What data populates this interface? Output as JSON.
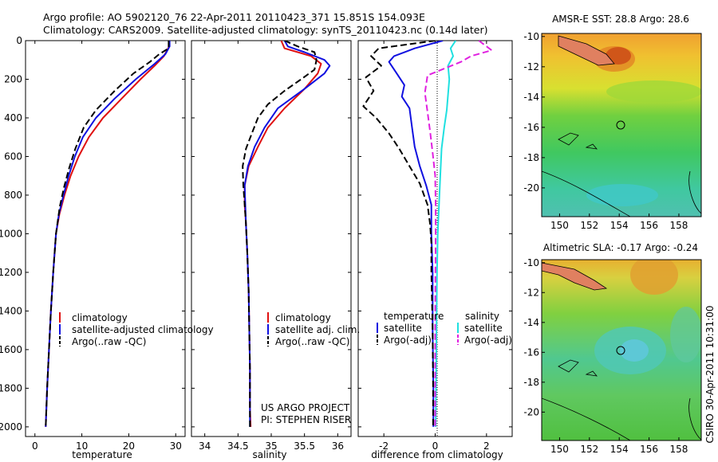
{
  "header": {
    "title_line1": "Argo profile: AO 5902120_76 22-Apr-2011 20110423_371 15.851S 154.093E",
    "title_line2": "Climatology: CARS2009. Satellite-adjusted climatology: synTS_20110423.nc (0.14d later)"
  },
  "side_label": "CSIRO 30-Apr-2011 10:31:00",
  "project": {
    "line1": "US ARGO PROJECT",
    "line2": "PI: STEPHEN RISER"
  },
  "colors": {
    "climatology": "#e01010",
    "satellite": "#1010e0",
    "argo": "#000000",
    "salinity_satellite": "#20e0e0",
    "salinity_argo": "#e020e0"
  },
  "chart_data": [
    {
      "type": "line",
      "id": "temperature",
      "xlabel": "temperature",
      "ylabel": "",
      "xlim": [
        -2,
        32
      ],
      "ylim": [
        2050,
        0
      ],
      "xticks": [
        "0",
        "10",
        "20",
        "30"
      ],
      "yticks": [
        "0",
        "200",
        "400",
        "600",
        "800",
        "1000",
        "1200",
        "1400",
        "1600",
        "1800",
        "2000"
      ],
      "legend": [
        "climatology",
        "satellite-adjusted climatology",
        "Argo(..raw -QC)"
      ],
      "series": [
        {
          "name": "climatology",
          "style": "solid",
          "color": "#e01010",
          "points": [
            [
              28.6,
              0
            ],
            [
              28.6,
              30
            ],
            [
              27.5,
              80
            ],
            [
              25.5,
              130
            ],
            [
              22.5,
              200
            ],
            [
              18.5,
              300
            ],
            [
              14.5,
              400
            ],
            [
              11.5,
              500
            ],
            [
              9.3,
              600
            ],
            [
              7.6,
              700
            ],
            [
              6.3,
              800
            ],
            [
              5.2,
              900
            ],
            [
              4.5,
              1000
            ],
            [
              3.9,
              1200
            ],
            [
              3.4,
              1400
            ],
            [
              3.0,
              1600
            ],
            [
              2.6,
              1800
            ],
            [
              2.3,
              2000
            ]
          ]
        },
        {
          "name": "satellite-adjusted climatology",
          "style": "solid",
          "color": "#1010e0",
          "points": [
            [
              28.7,
              0
            ],
            [
              28.7,
              30
            ],
            [
              27.8,
              70
            ],
            [
              25.5,
              120
            ],
            [
              21.5,
              200
            ],
            [
              17.0,
              300
            ],
            [
              13.0,
              400
            ],
            [
              10.2,
              500
            ],
            [
              8.5,
              600
            ],
            [
              7.2,
              700
            ],
            [
              6.1,
              800
            ],
            [
              5.1,
              900
            ],
            [
              4.5,
              1000
            ],
            [
              3.9,
              1200
            ],
            [
              3.4,
              1400
            ],
            [
              3.0,
              1600
            ],
            [
              2.6,
              1800
            ],
            [
              2.3,
              2000
            ]
          ]
        },
        {
          "name": "Argo(..raw -QC)",
          "style": "dashed",
          "color": "#000000",
          "points": [
            [
              28.5,
              0
            ],
            [
              28.5,
              40
            ],
            [
              26.5,
              70
            ],
            [
              24.5,
              110
            ],
            [
              21.0,
              170
            ],
            [
              17.0,
              260
            ],
            [
              13.0,
              360
            ],
            [
              10.4,
              450
            ],
            [
              8.6,
              560
            ],
            [
              7.3,
              660
            ],
            [
              6.2,
              760
            ],
            [
              5.3,
              860
            ],
            [
              4.5,
              1000
            ],
            [
              3.9,
              1200
            ],
            [
              3.4,
              1400
            ],
            [
              3.0,
              1600
            ],
            [
              2.6,
              1800
            ],
            [
              2.3,
              2000
            ]
          ]
        }
      ]
    },
    {
      "type": "line",
      "id": "salinity",
      "xlabel": "salinity",
      "ylabel": "",
      "xlim": [
        33.8,
        36.2
      ],
      "ylim": [
        2050,
        0
      ],
      "xticks": [
        "34",
        "34.5",
        "35",
        "35.5",
        "36"
      ],
      "legend": [
        "climatology",
        "satellite adj. clim.",
        "Argo(..raw -QC)"
      ],
      "series": [
        {
          "name": "climatology",
          "style": "solid",
          "color": "#e01010",
          "points": [
            [
              35.15,
              0
            ],
            [
              35.2,
              40
            ],
            [
              35.6,
              80
            ],
            [
              35.75,
              120
            ],
            [
              35.7,
              170
            ],
            [
              35.5,
              250
            ],
            [
              35.2,
              350
            ],
            [
              34.95,
              450
            ],
            [
              34.8,
              550
            ],
            [
              34.66,
              650
            ],
            [
              34.6,
              750
            ],
            [
              34.6,
              850
            ],
            [
              34.62,
              950
            ],
            [
              34.64,
              1100
            ],
            [
              34.66,
              1300
            ],
            [
              34.67,
              1500
            ],
            [
              34.68,
              1700
            ],
            [
              34.68,
              1900
            ],
            [
              34.69,
              2000
            ]
          ]
        },
        {
          "name": "satellite adj. clim.",
          "style": "solid",
          "color": "#1010e0",
          "points": [
            [
              35.2,
              0
            ],
            [
              35.25,
              30
            ],
            [
              35.5,
              60
            ],
            [
              35.8,
              100
            ],
            [
              35.88,
              130
            ],
            [
              35.8,
              170
            ],
            [
              35.5,
              250
            ],
            [
              35.1,
              350
            ],
            [
              34.9,
              450
            ],
            [
              34.75,
              550
            ],
            [
              34.65,
              650
            ],
            [
              34.6,
              750
            ],
            [
              34.61,
              850
            ],
            [
              34.62,
              950
            ],
            [
              34.64,
              1100
            ],
            [
              34.66,
              1300
            ],
            [
              34.67,
              1500
            ],
            [
              34.68,
              1700
            ],
            [
              34.68,
              1900
            ],
            [
              34.68,
              2000
            ]
          ]
        },
        {
          "name": "Argo(..raw -QC)",
          "style": "dashed",
          "color": "#000000",
          "points": [
            [
              35.2,
              0
            ],
            [
              35.4,
              30
            ],
            [
              35.65,
              60
            ],
            [
              35.68,
              100
            ],
            [
              35.65,
              150
            ],
            [
              35.45,
              200
            ],
            [
              35.2,
              260
            ],
            [
              34.95,
              330
            ],
            [
              34.8,
              400
            ],
            [
              34.72,
              470
            ],
            [
              34.62,
              560
            ],
            [
              34.57,
              650
            ],
            [
              34.58,
              750
            ],
            [
              34.6,
              850
            ],
            [
              34.62,
              950
            ],
            [
              34.64,
              1100
            ],
            [
              34.66,
              1300
            ],
            [
              34.67,
              1500
            ],
            [
              34.68,
              1700
            ],
            [
              34.68,
              1900
            ],
            [
              34.68,
              2000
            ]
          ]
        }
      ]
    },
    {
      "type": "line",
      "id": "difference",
      "xlabel": "difference from climatology",
      "ylabel": "",
      "xlim": [
        -3,
        3
      ],
      "ylim": [
        2050,
        0
      ],
      "xticks": [
        "-2",
        "0",
        "2"
      ],
      "legend_titles": [
        "temperature",
        "salinity"
      ],
      "legend": [
        "satellite",
        "Argo(-adj)",
        "satellite",
        "Argo(-adj)"
      ],
      "series": [
        {
          "name": "temperature satellite",
          "style": "solid",
          "color": "#1010e0",
          "points": [
            [
              0.3,
              0
            ],
            [
              -0.8,
              40
            ],
            [
              -1.6,
              80
            ],
            [
              -1.8,
              110
            ],
            [
              -1.5,
              170
            ],
            [
              -1.2,
              230
            ],
            [
              -1.3,
              290
            ],
            [
              -1.0,
              350
            ],
            [
              -0.9,
              450
            ],
            [
              -0.8,
              550
            ],
            [
              -0.6,
              650
            ],
            [
              -0.35,
              750
            ],
            [
              -0.15,
              850
            ],
            [
              -0.15,
              1000
            ],
            [
              -0.1,
              1200
            ],
            [
              -0.1,
              1500
            ],
            [
              -0.07,
              1800
            ],
            [
              -0.07,
              2000
            ]
          ]
        },
        {
          "name": "temperature Argo(-adj)",
          "style": "dashed",
          "color": "#000000",
          "points": [
            [
              0.0,
              0
            ],
            [
              -2.2,
              40
            ],
            [
              -2.5,
              80
            ],
            [
              -2.1,
              130
            ],
            [
              -2.7,
              190
            ],
            [
              -2.4,
              260
            ],
            [
              -2.8,
              340
            ],
            [
              -2.3,
              400
            ],
            [
              -1.8,
              480
            ],
            [
              -1.4,
              560
            ],
            [
              -1.0,
              650
            ],
            [
              -0.6,
              740
            ],
            [
              -0.3,
              850
            ],
            [
              -0.2,
              950
            ],
            [
              -0.15,
              1050
            ],
            [
              -0.15,
              1200
            ],
            [
              -0.1,
              1500
            ],
            [
              -0.08,
              1800
            ],
            [
              -0.08,
              2000
            ]
          ]
        },
        {
          "name": "salinity satellite",
          "style": "solid",
          "color": "#20e0e0",
          "points": [
            [
              0.8,
              0
            ],
            [
              0.6,
              40
            ],
            [
              0.7,
              80
            ],
            [
              0.5,
              130
            ],
            [
              0.55,
              200
            ],
            [
              0.5,
              280
            ],
            [
              0.45,
              360
            ],
            [
              0.35,
              450
            ],
            [
              0.25,
              560
            ],
            [
              0.2,
              700
            ],
            [
              0.15,
              850
            ],
            [
              0.1,
              1000
            ],
            [
              0.07,
              1200
            ],
            [
              0.05,
              1500
            ],
            [
              0.03,
              1800
            ],
            [
              0.02,
              2000
            ]
          ]
        },
        {
          "name": "salinity Argo(-adj)",
          "style": "dashed",
          "color": "#e020e0",
          "points": [
            [
              1.7,
              0
            ],
            [
              2.2,
              50
            ],
            [
              1.4,
              80
            ],
            [
              1.0,
              110
            ],
            [
              -0.3,
              180
            ],
            [
              -0.4,
              270
            ],
            [
              -0.3,
              370
            ],
            [
              -0.2,
              470
            ],
            [
              -0.1,
              580
            ],
            [
              0.0,
              700
            ],
            [
              0.02,
              850
            ],
            [
              0.02,
              1000
            ],
            [
              0.01,
              1200
            ],
            [
              0.0,
              1500
            ],
            [
              0.0,
              1800
            ],
            [
              0.0,
              2000
            ]
          ]
        }
      ]
    },
    {
      "type": "heatmap",
      "id": "sst-map",
      "title": "AMSR-E SST: 28.8 Argo: 28.6",
      "xlim": [
        148.8,
        159.5
      ],
      "ylim": [
        -21.9,
        -9.8
      ],
      "xticks": [
        "150",
        "152",
        "154",
        "156",
        "158"
      ],
      "yticks": [
        "-10",
        "-12",
        "-14",
        "-16",
        "-18",
        "-20"
      ],
      "argo_position": [
        154.09,
        -15.85
      ]
    },
    {
      "type": "heatmap",
      "id": "sla-map",
      "title": "Altimetric SLA: -0.17 Argo: -0.24",
      "xlim": [
        148.8,
        159.5
      ],
      "ylim": [
        -21.9,
        -9.8
      ],
      "xticks": [
        "150",
        "152",
        "154",
        "156",
        "158"
      ],
      "yticks": [
        "-10",
        "-12",
        "-14",
        "-16",
        "-18",
        "-20"
      ],
      "argo_position": [
        154.09,
        -15.85
      ]
    }
  ]
}
